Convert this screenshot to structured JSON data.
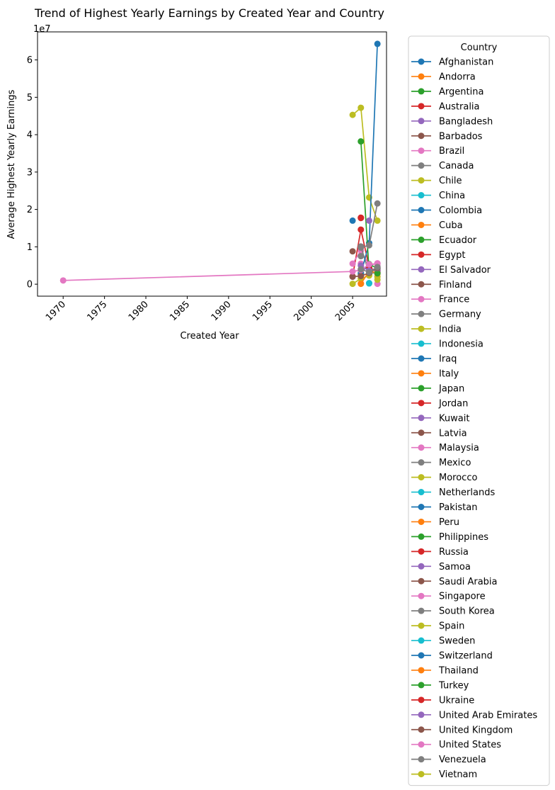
{
  "chart_data": {
    "type": "line",
    "title": "Trend of Highest Yearly Earnings by Created Year and Country",
    "xlabel": "Created Year",
    "ylabel": "Average Highest Yearly Earnings",
    "y_offset_text": "1e7",
    "xlim": [
      1966.9,
      2009.1
    ],
    "ylim": [
      -3200000,
      67500000
    ],
    "x_ticks": [
      1970,
      1975,
      1980,
      1985,
      1990,
      1995,
      2000,
      2005
    ],
    "y_ticks": [
      0,
      10000000,
      20000000,
      30000000,
      40000000,
      50000000,
      60000000
    ],
    "y_tick_labels": [
      "0",
      "1",
      "2",
      "3",
      "4",
      "5",
      "6"
    ],
    "grid": false,
    "legend_title": "Country",
    "legend_placement": "outside-right",
    "series": [
      {
        "name": "Afghanistan",
        "color": "#1f77b4",
        "x": [
          2007
        ],
        "y": [
          4500000
        ]
      },
      {
        "name": "Andorra",
        "color": "#ff7f0e",
        "x": [
          2008
        ],
        "y": [
          3800000
        ]
      },
      {
        "name": "Argentina",
        "color": "#2ca02c",
        "x": [
          2006,
          2007,
          2008
        ],
        "y": [
          3000000,
          5400000,
          4200000
        ]
      },
      {
        "name": "Australia",
        "color": "#d62728",
        "x": [
          2005,
          2006,
          2007,
          2008
        ],
        "y": [
          2100000,
          14600000,
          4600000,
          3200000
        ]
      },
      {
        "name": "Bangladesh",
        "color": "#9467bd",
        "x": [
          2006,
          2007
        ],
        "y": [
          3800000,
          4400000
        ]
      },
      {
        "name": "Barbados",
        "color": "#8c564b",
        "x": [
          2005
        ],
        "y": [
          8800000
        ]
      },
      {
        "name": "Brazil",
        "color": "#e377c2",
        "x": [
          2005,
          2006,
          2007,
          2008
        ],
        "y": [
          5500000,
          9000000,
          5000000,
          5600000
        ]
      },
      {
        "name": "Canada",
        "color": "#7f7f7f",
        "x": [
          2006,
          2007,
          2008
        ],
        "y": [
          10100000,
          2800000,
          3200000
        ]
      },
      {
        "name": "Chile",
        "color": "#bcbd22",
        "x": [
          2007
        ],
        "y": [
          2600000
        ]
      },
      {
        "name": "China",
        "color": "#17becf",
        "x": [
          2007
        ],
        "y": [
          200000
        ]
      },
      {
        "name": "Colombia",
        "color": "#1f77b4",
        "x": [
          2005
        ],
        "y": [
          17000000
        ]
      },
      {
        "name": "Cuba",
        "color": "#ff7f0e",
        "x": [
          2006
        ],
        "y": [
          200000
        ]
      },
      {
        "name": "Ecuador",
        "color": "#2ca02c",
        "x": [
          2007
        ],
        "y": [
          3000000
        ]
      },
      {
        "name": "Egypt",
        "color": "#d62728",
        "x": [
          2006
        ],
        "y": [
          17800000
        ]
      },
      {
        "name": "El Salvador",
        "color": "#9467bd",
        "x": [
          2008
        ],
        "y": [
          3000000
        ]
      },
      {
        "name": "Finland",
        "color": "#8c564b",
        "x": [
          2006
        ],
        "y": [
          2600000
        ]
      },
      {
        "name": "France",
        "color": "#e377c2",
        "x": [
          2006
        ],
        "y": [
          5500000
        ]
      },
      {
        "name": "Germany",
        "color": "#7f7f7f",
        "x": [
          2006
        ],
        "y": [
          7500000
        ]
      },
      {
        "name": "India",
        "color": "#bcbd22",
        "x": [
          2005,
          2006,
          2007,
          2008
        ],
        "y": [
          45300000,
          47200000,
          23200000,
          17000000
        ]
      },
      {
        "name": "Indonesia",
        "color": "#17becf",
        "x": [
          2008
        ],
        "y": [
          3300000
        ]
      },
      {
        "name": "Iraq",
        "color": "#1f77b4",
        "x": [
          2006,
          2007,
          2008
        ],
        "y": [
          2800000,
          11000000,
          64300000
        ]
      },
      {
        "name": "Italy",
        "color": "#ff7f0e",
        "x": [
          2006
        ],
        "y": [
          1500000
        ]
      },
      {
        "name": "Japan",
        "color": "#2ca02c",
        "x": [
          2006,
          2007
        ],
        "y": [
          38200000,
          3100000
        ]
      },
      {
        "name": "Jordan",
        "color": "#d62728",
        "x": [
          2008
        ],
        "y": [
          3700000
        ]
      },
      {
        "name": "Kuwait",
        "color": "#9467bd",
        "x": [
          2007
        ],
        "y": [
          17000000
        ]
      },
      {
        "name": "Latvia",
        "color": "#8c564b",
        "x": [
          2008
        ],
        "y": [
          4400000
        ]
      },
      {
        "name": "Malaysia",
        "color": "#e377c2",
        "x": [
          2008
        ],
        "y": [
          4800000
        ]
      },
      {
        "name": "Mexico",
        "color": "#7f7f7f",
        "x": [
          2006,
          2007,
          2008
        ],
        "y": [
          9800000,
          10400000,
          21600000
        ]
      },
      {
        "name": "Morocco",
        "color": "#bcbd22",
        "x": [
          2008
        ],
        "y": [
          2000000
        ]
      },
      {
        "name": "Netherlands",
        "color": "#17becf",
        "x": [
          2007
        ],
        "y": [
          300000
        ]
      },
      {
        "name": "Pakistan",
        "color": "#1f77b4",
        "x": [
          2007
        ],
        "y": [
          5000000
        ]
      },
      {
        "name": "Peru",
        "color": "#ff7f0e",
        "x": [
          2008
        ],
        "y": [
          2800000
        ]
      },
      {
        "name": "Philippines",
        "color": "#2ca02c",
        "x": [
          2007
        ],
        "y": [
          4700000
        ]
      },
      {
        "name": "Russia",
        "color": "#d62728",
        "x": [
          2006
        ],
        "y": [
          17700000
        ]
      },
      {
        "name": "Samoa",
        "color": "#9467bd",
        "x": [
          2008
        ],
        "y": [
          3500000
        ]
      },
      {
        "name": "Saudi Arabia",
        "color": "#8c564b",
        "x": [
          2007
        ],
        "y": [
          2700000
        ]
      },
      {
        "name": "Singapore",
        "color": "#e377c2",
        "x": [
          2008
        ],
        "y": [
          100000
        ]
      },
      {
        "name": "South Korea",
        "color": "#7f7f7f",
        "x": [
          2007
        ],
        "y": [
          5300000
        ]
      },
      {
        "name": "Spain",
        "color": "#bcbd22",
        "x": [
          2005,
          2006,
          2007
        ],
        "y": [
          100000,
          1500000,
          2300000
        ]
      },
      {
        "name": "Sweden",
        "color": "#17becf",
        "x": [
          2007
        ],
        "y": [
          3900000
        ]
      },
      {
        "name": "Switzerland",
        "color": "#1f77b4",
        "x": [
          2008
        ],
        "y": [
          4200000
        ]
      },
      {
        "name": "Thailand",
        "color": "#ff7f0e",
        "x": [
          2006,
          2007,
          2008
        ],
        "y": [
          100000,
          3500000,
          3000000
        ]
      },
      {
        "name": "Turkey",
        "color": "#2ca02c",
        "x": [
          2008
        ],
        "y": [
          2900000
        ]
      },
      {
        "name": "Ukraine",
        "color": "#d62728",
        "x": [
          2007
        ],
        "y": [
          4200000
        ]
      },
      {
        "name": "United Arab Emirates",
        "color": "#9467bd",
        "x": [
          2006,
          2007,
          2008
        ],
        "y": [
          5000000,
          3600000,
          4300000
        ]
      },
      {
        "name": "United Kingdom",
        "color": "#8c564b",
        "x": [
          2005,
          2006,
          2007,
          2008
        ],
        "y": [
          2000000,
          2200000,
          3000000,
          4400000
        ]
      },
      {
        "name": "United States",
        "color": "#e377c2",
        "x": [
          1970,
          2005,
          2006,
          2007,
          2008
        ],
        "y": [
          1000000,
          3400000,
          3800000,
          5300000,
          5500000
        ]
      },
      {
        "name": "Venezuela",
        "color": "#7f7f7f",
        "x": [
          2006,
          2007,
          2008
        ],
        "y": [
          4000000,
          3200000,
          4600000
        ]
      },
      {
        "name": "Vietnam",
        "color": "#bcbd22",
        "x": [
          2008
        ],
        "y": [
          1200000
        ]
      }
    ]
  }
}
